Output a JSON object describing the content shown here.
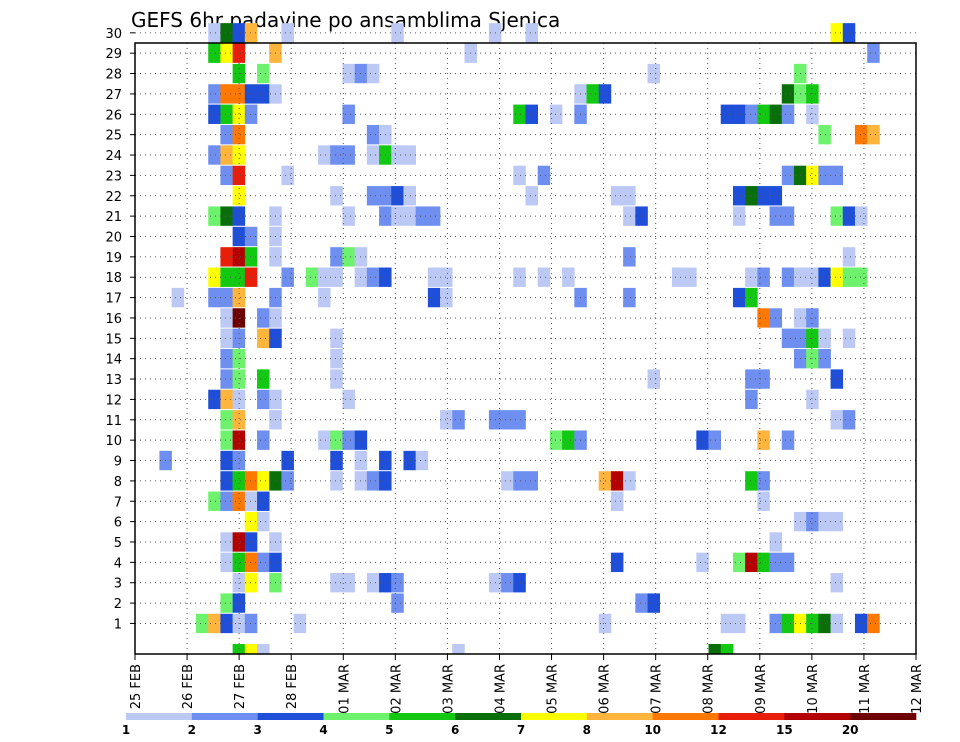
{
  "chart_data": {
    "type": "heatmap",
    "title": "GEFS 6hr padavine po ansamblima Sjenica",
    "x_tick_labels": [
      "25 FEB",
      "26 FEB",
      "27 FEB",
      "28 FEB",
      "01 MAR",
      "02 MAR",
      "03 MAR",
      "04 MAR",
      "05 MAR",
      "06 MAR",
      "07 MAR",
      "08 MAR",
      "09 MAR",
      "10 MAR",
      "11 MAR",
      "12 MAR"
    ],
    "y_tick_labels": [
      "1",
      "2",
      "3",
      "4",
      "5",
      "6",
      "7",
      "8",
      "9",
      "10",
      "11",
      "12",
      "13",
      "14",
      "15",
      "16",
      "17",
      "18",
      "19",
      "20",
      "21",
      "22",
      "23",
      "24",
      "25",
      "26",
      "27",
      "28",
      "29",
      "30"
    ],
    "steps_per_day": 4,
    "n_steps": 64,
    "levels": [
      "1",
      "2",
      "3",
      "4",
      "5",
      "6",
      "7",
      "8",
      "10",
      "12",
      "15",
      "20"
    ],
    "colors": {
      "c1": "#bcc9f5",
      "c2": "#6e8ff0",
      "c3": "#1f4fd8",
      "c4": "#6ef26e",
      "c5": "#12c812",
      "c6": "#0a6e0a",
      "c7": "#ffff00",
      "c8": "#ffb43c",
      "c9": "#ff7800",
      "c10": "#e81e0a",
      "c11": "#b40000",
      "c12": "#6e0000",
      "grid": "#555555",
      "frame": "#000000"
    },
    "cells": [
      [
        1,
        5,
        4
      ],
      [
        1,
        6,
        8
      ],
      [
        1,
        7,
        3
      ],
      [
        1,
        8,
        1
      ],
      [
        1,
        9,
        2
      ],
      [
        1,
        13,
        1
      ],
      [
        1,
        38,
        1
      ],
      [
        1,
        48,
        1
      ],
      [
        1,
        49,
        1
      ],
      [
        1,
        52,
        2
      ],
      [
        1,
        53,
        5
      ],
      [
        1,
        54,
        7
      ],
      [
        1,
        55,
        5
      ],
      [
        1,
        56,
        6
      ],
      [
        1,
        57,
        1
      ],
      [
        1,
        59,
        3
      ],
      [
        1,
        60,
        9
      ],
      [
        2,
        7,
        4
      ],
      [
        2,
        8,
        3
      ],
      [
        2,
        21,
        2
      ],
      [
        2,
        41,
        2
      ],
      [
        2,
        42,
        3
      ],
      [
        3,
        8,
        1
      ],
      [
        3,
        9,
        7
      ],
      [
        3,
        11,
        4
      ],
      [
        3,
        16,
        1
      ],
      [
        3,
        17,
        1
      ],
      [
        3,
        19,
        1
      ],
      [
        3,
        20,
        3
      ],
      [
        3,
        21,
        2
      ],
      [
        3,
        29,
        1
      ],
      [
        3,
        30,
        2
      ],
      [
        3,
        31,
        3
      ],
      [
        3,
        57,
        1
      ],
      [
        4,
        7,
        1
      ],
      [
        4,
        8,
        5
      ],
      [
        4,
        9,
        9
      ],
      [
        4,
        10,
        2
      ],
      [
        4,
        11,
        3
      ],
      [
        4,
        39,
        3
      ],
      [
        4,
        46,
        1
      ],
      [
        4,
        49,
        4
      ],
      [
        4,
        50,
        11
      ],
      [
        4,
        51,
        5
      ],
      [
        4,
        52,
        2
      ],
      [
        4,
        53,
        2
      ],
      [
        5,
        7,
        1
      ],
      [
        5,
        8,
        11
      ],
      [
        5,
        9,
        3
      ],
      [
        5,
        11,
        1
      ],
      [
        5,
        52,
        1
      ],
      [
        6,
        9,
        7
      ],
      [
        6,
        10,
        1
      ],
      [
        6,
        54,
        1
      ],
      [
        6,
        55,
        2
      ],
      [
        6,
        56,
        1
      ],
      [
        6,
        57,
        1
      ],
      [
        7,
        6,
        4
      ],
      [
        7,
        7,
        2
      ],
      [
        7,
        8,
        9
      ],
      [
        7,
        9,
        1
      ],
      [
        7,
        10,
        3
      ],
      [
        7,
        39,
        1
      ],
      [
        7,
        51,
        1
      ],
      [
        8,
        7,
        3
      ],
      [
        8,
        8,
        5
      ],
      [
        8,
        9,
        9
      ],
      [
        8,
        10,
        7
      ],
      [
        8,
        11,
        6
      ],
      [
        8,
        12,
        2
      ],
      [
        8,
        16,
        1
      ],
      [
        8,
        18,
        1
      ],
      [
        8,
        19,
        2
      ],
      [
        8,
        20,
        3
      ],
      [
        8,
        30,
        1
      ],
      [
        8,
        31,
        2
      ],
      [
        8,
        32,
        2
      ],
      [
        8,
        38,
        8
      ],
      [
        8,
        39,
        11
      ],
      [
        8,
        40,
        1
      ],
      [
        8,
        50,
        5
      ],
      [
        8,
        51,
        2
      ],
      [
        9,
        2,
        2
      ],
      [
        9,
        7,
        3
      ],
      [
        9,
        8,
        2
      ],
      [
        9,
        12,
        3
      ],
      [
        9,
        16,
        3
      ],
      [
        9,
        18,
        1
      ],
      [
        9,
        20,
        3
      ],
      [
        9,
        22,
        3
      ],
      [
        9,
        23,
        1
      ],
      [
        10,
        7,
        4
      ],
      [
        10,
        8,
        11
      ],
      [
        10,
        10,
        2
      ],
      [
        10,
        15,
        1
      ],
      [
        10,
        16,
        4
      ],
      [
        10,
        17,
        2
      ],
      [
        10,
        18,
        3
      ],
      [
        10,
        34,
        4
      ],
      [
        10,
        35,
        5
      ],
      [
        10,
        36,
        2
      ],
      [
        10,
        46,
        3
      ],
      [
        10,
        47,
        2
      ],
      [
        10,
        51,
        8
      ],
      [
        10,
        53,
        2
      ],
      [
        11,
        7,
        4
      ],
      [
        11,
        8,
        8
      ],
      [
        11,
        11,
        1
      ],
      [
        11,
        25,
        1
      ],
      [
        11,
        26,
        2
      ],
      [
        11,
        29,
        2
      ],
      [
        11,
        30,
        2
      ],
      [
        11,
        31,
        2
      ],
      [
        11,
        57,
        1
      ],
      [
        11,
        58,
        2
      ],
      [
        12,
        6,
        3
      ],
      [
        12,
        7,
        8
      ],
      [
        12,
        8,
        1
      ],
      [
        12,
        10,
        2
      ],
      [
        12,
        11,
        1
      ],
      [
        12,
        17,
        1
      ],
      [
        12,
        50,
        2
      ],
      [
        12,
        55,
        1
      ],
      [
        13,
        7,
        2
      ],
      [
        13,
        8,
        4
      ],
      [
        13,
        10,
        5
      ],
      [
        13,
        16,
        1
      ],
      [
        13,
        42,
        1
      ],
      [
        13,
        50,
        2
      ],
      [
        13,
        51,
        2
      ],
      [
        13,
        57,
        3
      ],
      [
        14,
        7,
        2
      ],
      [
        14,
        8,
        4
      ],
      [
        14,
        16,
        1
      ],
      [
        14,
        54,
        2
      ],
      [
        14,
        55,
        4
      ],
      [
        14,
        56,
        2
      ],
      [
        15,
        7,
        1
      ],
      [
        15,
        8,
        2
      ],
      [
        15,
        10,
        8
      ],
      [
        15,
        11,
        3
      ],
      [
        15,
        16,
        1
      ],
      [
        15,
        53,
        2
      ],
      [
        15,
        54,
        2
      ],
      [
        15,
        55,
        5
      ],
      [
        15,
        56,
        1
      ],
      [
        15,
        58,
        1
      ],
      [
        16,
        7,
        1
      ],
      [
        16,
        8,
        12
      ],
      [
        16,
        10,
        2
      ],
      [
        16,
        11,
        1
      ],
      [
        16,
        51,
        9
      ],
      [
        16,
        52,
        2
      ],
      [
        16,
        54,
        1
      ],
      [
        16,
        55,
        2
      ],
      [
        17,
        3,
        1
      ],
      [
        17,
        6,
        2
      ],
      [
        17,
        7,
        2
      ],
      [
        17,
        8,
        8
      ],
      [
        17,
        11,
        2
      ],
      [
        17,
        15,
        1
      ],
      [
        17,
        24,
        3
      ],
      [
        17,
        25,
        1
      ],
      [
        17,
        36,
        2
      ],
      [
        17,
        40,
        2
      ],
      [
        17,
        49,
        3
      ],
      [
        17,
        50,
        5
      ],
      [
        18,
        6,
        7
      ],
      [
        18,
        7,
        5
      ],
      [
        18,
        8,
        5
      ],
      [
        18,
        9,
        10
      ],
      [
        18,
        12,
        2
      ],
      [
        18,
        14,
        4
      ],
      [
        18,
        15,
        1
      ],
      [
        18,
        16,
        1
      ],
      [
        18,
        18,
        1
      ],
      [
        18,
        19,
        2
      ],
      [
        18,
        20,
        3
      ],
      [
        18,
        24,
        1
      ],
      [
        18,
        25,
        1
      ],
      [
        18,
        31,
        1
      ],
      [
        18,
        33,
        1
      ],
      [
        18,
        35,
        1
      ],
      [
        18,
        44,
        1
      ],
      [
        18,
        45,
        1
      ],
      [
        18,
        50,
        1
      ],
      [
        18,
        51,
        2
      ],
      [
        18,
        53,
        2
      ],
      [
        18,
        54,
        1
      ],
      [
        18,
        55,
        1
      ],
      [
        18,
        56,
        3
      ],
      [
        18,
        57,
        7
      ],
      [
        18,
        58,
        4
      ],
      [
        18,
        59,
        4
      ],
      [
        19,
        7,
        10
      ],
      [
        19,
        8,
        11
      ],
      [
        19,
        9,
        5
      ],
      [
        19,
        11,
        1
      ],
      [
        19,
        16,
        2
      ],
      [
        19,
        17,
        4
      ],
      [
        19,
        18,
        1
      ],
      [
        19,
        40,
        2
      ],
      [
        19,
        58,
        1
      ],
      [
        20,
        8,
        3
      ],
      [
        20,
        9,
        2
      ],
      [
        20,
        11,
        1
      ],
      [
        21,
        6,
        4
      ],
      [
        21,
        7,
        6
      ],
      [
        21,
        8,
        3
      ],
      [
        21,
        11,
        1
      ],
      [
        21,
        17,
        1
      ],
      [
        21,
        20,
        2
      ],
      [
        21,
        21,
        1
      ],
      [
        21,
        22,
        1
      ],
      [
        21,
        23,
        2
      ],
      [
        21,
        24,
        2
      ],
      [
        21,
        40,
        1
      ],
      [
        21,
        41,
        3
      ],
      [
        21,
        49,
        1
      ],
      [
        21,
        52,
        2
      ],
      [
        21,
        53,
        2
      ],
      [
        21,
        57,
        4
      ],
      [
        21,
        58,
        3
      ],
      [
        21,
        59,
        1
      ],
      [
        22,
        8,
        7
      ],
      [
        22,
        16,
        1
      ],
      [
        22,
        19,
        2
      ],
      [
        22,
        20,
        2
      ],
      [
        22,
        21,
        3
      ],
      [
        22,
        22,
        1
      ],
      [
        22,
        32,
        1
      ],
      [
        22,
        39,
        1
      ],
      [
        22,
        40,
        1
      ],
      [
        22,
        49,
        3
      ],
      [
        22,
        50,
        6
      ],
      [
        22,
        51,
        3
      ],
      [
        22,
        52,
        3
      ],
      [
        23,
        7,
        2
      ],
      [
        23,
        8,
        10
      ],
      [
        23,
        12,
        1
      ],
      [
        23,
        31,
        1
      ],
      [
        23,
        33,
        2
      ],
      [
        23,
        53,
        2
      ],
      [
        23,
        54,
        6
      ],
      [
        23,
        55,
        7
      ],
      [
        23,
        56,
        2
      ],
      [
        23,
        57,
        2
      ],
      [
        24,
        6,
        2
      ],
      [
        24,
        7,
        8
      ],
      [
        24,
        8,
        7
      ],
      [
        24,
        15,
        1
      ],
      [
        24,
        16,
        2
      ],
      [
        24,
        17,
        2
      ],
      [
        24,
        19,
        1
      ],
      [
        24,
        20,
        5
      ],
      [
        24,
        21,
        1
      ],
      [
        24,
        22,
        1
      ],
      [
        25,
        7,
        2
      ],
      [
        25,
        8,
        9
      ],
      [
        25,
        19,
        2
      ],
      [
        25,
        20,
        1
      ],
      [
        25,
        56,
        4
      ],
      [
        25,
        59,
        9
      ],
      [
        25,
        60,
        8
      ],
      [
        26,
        6,
        3
      ],
      [
        26,
        7,
        5
      ],
      [
        26,
        8,
        7
      ],
      [
        26,
        9,
        2
      ],
      [
        26,
        17,
        2
      ],
      [
        26,
        31,
        5
      ],
      [
        26,
        32,
        3
      ],
      [
        26,
        34,
        1
      ],
      [
        26,
        36,
        2
      ],
      [
        26,
        48,
        3
      ],
      [
        26,
        49,
        3
      ],
      [
        26,
        50,
        2
      ],
      [
        26,
        51,
        5
      ],
      [
        26,
        52,
        6
      ],
      [
        26,
        53,
        2
      ],
      [
        26,
        55,
        1
      ],
      [
        27,
        6,
        2
      ],
      [
        27,
        7,
        9
      ],
      [
        27,
        8,
        9
      ],
      [
        27,
        9,
        3
      ],
      [
        27,
        10,
        3
      ],
      [
        27,
        11,
        1
      ],
      [
        27,
        36,
        1
      ],
      [
        27,
        37,
        5
      ],
      [
        27,
        38,
        3
      ],
      [
        27,
        53,
        6
      ],
      [
        27,
        54,
        4
      ],
      [
        27,
        55,
        5
      ],
      [
        28,
        8,
        5
      ],
      [
        28,
        10,
        4
      ],
      [
        28,
        17,
        1
      ],
      [
        28,
        18,
        2
      ],
      [
        28,
        19,
        1
      ],
      [
        28,
        42,
        1
      ],
      [
        28,
        54,
        4
      ],
      [
        29,
        6,
        5
      ],
      [
        29,
        7,
        7
      ],
      [
        29,
        8,
        10
      ],
      [
        29,
        11,
        8
      ],
      [
        29,
        27,
        1
      ],
      [
        29,
        60,
        2
      ],
      [
        30,
        6,
        1
      ],
      [
        30,
        7,
        6
      ],
      [
        30,
        8,
        3
      ],
      [
        30,
        9,
        8
      ],
      [
        30,
        12,
        1
      ],
      [
        30,
        21,
        1
      ],
      [
        30,
        29,
        1
      ],
      [
        30,
        32,
        1
      ],
      [
        30,
        57,
        7
      ],
      [
        30,
        58,
        3
      ],
      [
        0,
        8,
        5
      ],
      [
        0,
        9,
        7
      ],
      [
        0,
        10,
        1
      ],
      [
        0,
        26,
        1
      ],
      [
        0,
        47,
        6
      ],
      [
        0,
        48,
        5
      ]
    ]
  }
}
